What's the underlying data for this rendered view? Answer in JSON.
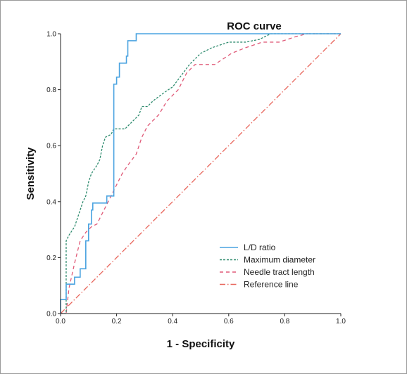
{
  "chart_data": {
    "type": "line",
    "title": "ROC curve",
    "xlabel": "1 - Specificity",
    "ylabel": "Sensitivity",
    "xlim": [
      0,
      1
    ],
    "ylim": [
      0,
      1
    ],
    "x_ticks": [
      "0.0",
      "0.2",
      "0.4",
      "0.6",
      "0.8",
      "1.0"
    ],
    "y_ticks": [
      "0.0",
      "0.2",
      "0.4",
      "0.6",
      "0.8",
      "1.0"
    ],
    "grid": false,
    "legend_position": "bottom-right",
    "series": [
      {
        "name": "L/D ratio",
        "color": "#4aa3e0",
        "dash": "solid",
        "points": [
          [
            0.0,
            0.0
          ],
          [
            0.0,
            0.05
          ],
          [
            0.02,
            0.05
          ],
          [
            0.02,
            0.105
          ],
          [
            0.05,
            0.105
          ],
          [
            0.05,
            0.13
          ],
          [
            0.07,
            0.13
          ],
          [
            0.07,
            0.16
          ],
          [
            0.09,
            0.16
          ],
          [
            0.09,
            0.26
          ],
          [
            0.1,
            0.26
          ],
          [
            0.1,
            0.32
          ],
          [
            0.11,
            0.32
          ],
          [
            0.11,
            0.37
          ],
          [
            0.115,
            0.37
          ],
          [
            0.115,
            0.395
          ],
          [
            0.165,
            0.395
          ],
          [
            0.165,
            0.42
          ],
          [
            0.19,
            0.42
          ],
          [
            0.19,
            0.82
          ],
          [
            0.2,
            0.82
          ],
          [
            0.2,
            0.845
          ],
          [
            0.21,
            0.845
          ],
          [
            0.21,
            0.895
          ],
          [
            0.235,
            0.895
          ],
          [
            0.235,
            0.92
          ],
          [
            0.24,
            0.92
          ],
          [
            0.24,
            0.975
          ],
          [
            0.27,
            0.975
          ],
          [
            0.27,
            1.0
          ],
          [
            1.0,
            1.0
          ]
        ]
      },
      {
        "name": "Maximum diameter",
        "color": "#2e8b6e",
        "dash": "3,2",
        "points": [
          [
            0.0,
            0.0
          ],
          [
            0.02,
            0.0
          ],
          [
            0.02,
            0.26
          ],
          [
            0.03,
            0.28
          ],
          [
            0.05,
            0.31
          ],
          [
            0.06,
            0.34
          ],
          [
            0.07,
            0.37
          ],
          [
            0.08,
            0.4
          ],
          [
            0.09,
            0.42
          ],
          [
            0.1,
            0.47
          ],
          [
            0.11,
            0.5
          ],
          [
            0.13,
            0.53
          ],
          [
            0.14,
            0.55
          ],
          [
            0.15,
            0.6
          ],
          [
            0.16,
            0.63
          ],
          [
            0.18,
            0.64
          ],
          [
            0.19,
            0.66
          ],
          [
            0.23,
            0.66
          ],
          [
            0.25,
            0.68
          ],
          [
            0.28,
            0.71
          ],
          [
            0.29,
            0.74
          ],
          [
            0.31,
            0.74
          ],
          [
            0.33,
            0.76
          ],
          [
            0.37,
            0.79
          ],
          [
            0.4,
            0.81
          ],
          [
            0.43,
            0.85
          ],
          [
            0.46,
            0.89
          ],
          [
            0.5,
            0.93
          ],
          [
            0.54,
            0.95
          ],
          [
            0.6,
            0.97
          ],
          [
            0.66,
            0.97
          ],
          [
            0.71,
            0.98
          ],
          [
            0.75,
            1.0
          ],
          [
            1.0,
            1.0
          ]
        ]
      },
      {
        "name": "Needle tract length",
        "color": "#e05a78",
        "dash": "5,4",
        "points": [
          [
            0.0,
            0.0
          ],
          [
            0.02,
            0.0
          ],
          [
            0.03,
            0.09
          ],
          [
            0.05,
            0.18
          ],
          [
            0.07,
            0.26
          ],
          [
            0.09,
            0.29
          ],
          [
            0.11,
            0.31
          ],
          [
            0.13,
            0.32
          ],
          [
            0.16,
            0.38
          ],
          [
            0.18,
            0.42
          ],
          [
            0.2,
            0.46
          ],
          [
            0.22,
            0.5
          ],
          [
            0.24,
            0.53
          ],
          [
            0.27,
            0.57
          ],
          [
            0.29,
            0.63
          ],
          [
            0.31,
            0.67
          ],
          [
            0.35,
            0.71
          ],
          [
            0.38,
            0.76
          ],
          [
            0.42,
            0.8
          ],
          [
            0.45,
            0.86
          ],
          [
            0.48,
            0.89
          ],
          [
            0.51,
            0.89
          ],
          [
            0.55,
            0.89
          ],
          [
            0.58,
            0.91
          ],
          [
            0.61,
            0.93
          ],
          [
            0.66,
            0.95
          ],
          [
            0.72,
            0.97
          ],
          [
            0.78,
            0.97
          ],
          [
            0.84,
            0.99
          ],
          [
            0.88,
            1.0
          ],
          [
            1.0,
            1.0
          ]
        ]
      },
      {
        "name": "Reference line",
        "color": "#e8645a",
        "dash": "8,3,1.5,3",
        "points": [
          [
            0.0,
            0.0
          ],
          [
            1.0,
            1.0
          ]
        ]
      }
    ]
  }
}
